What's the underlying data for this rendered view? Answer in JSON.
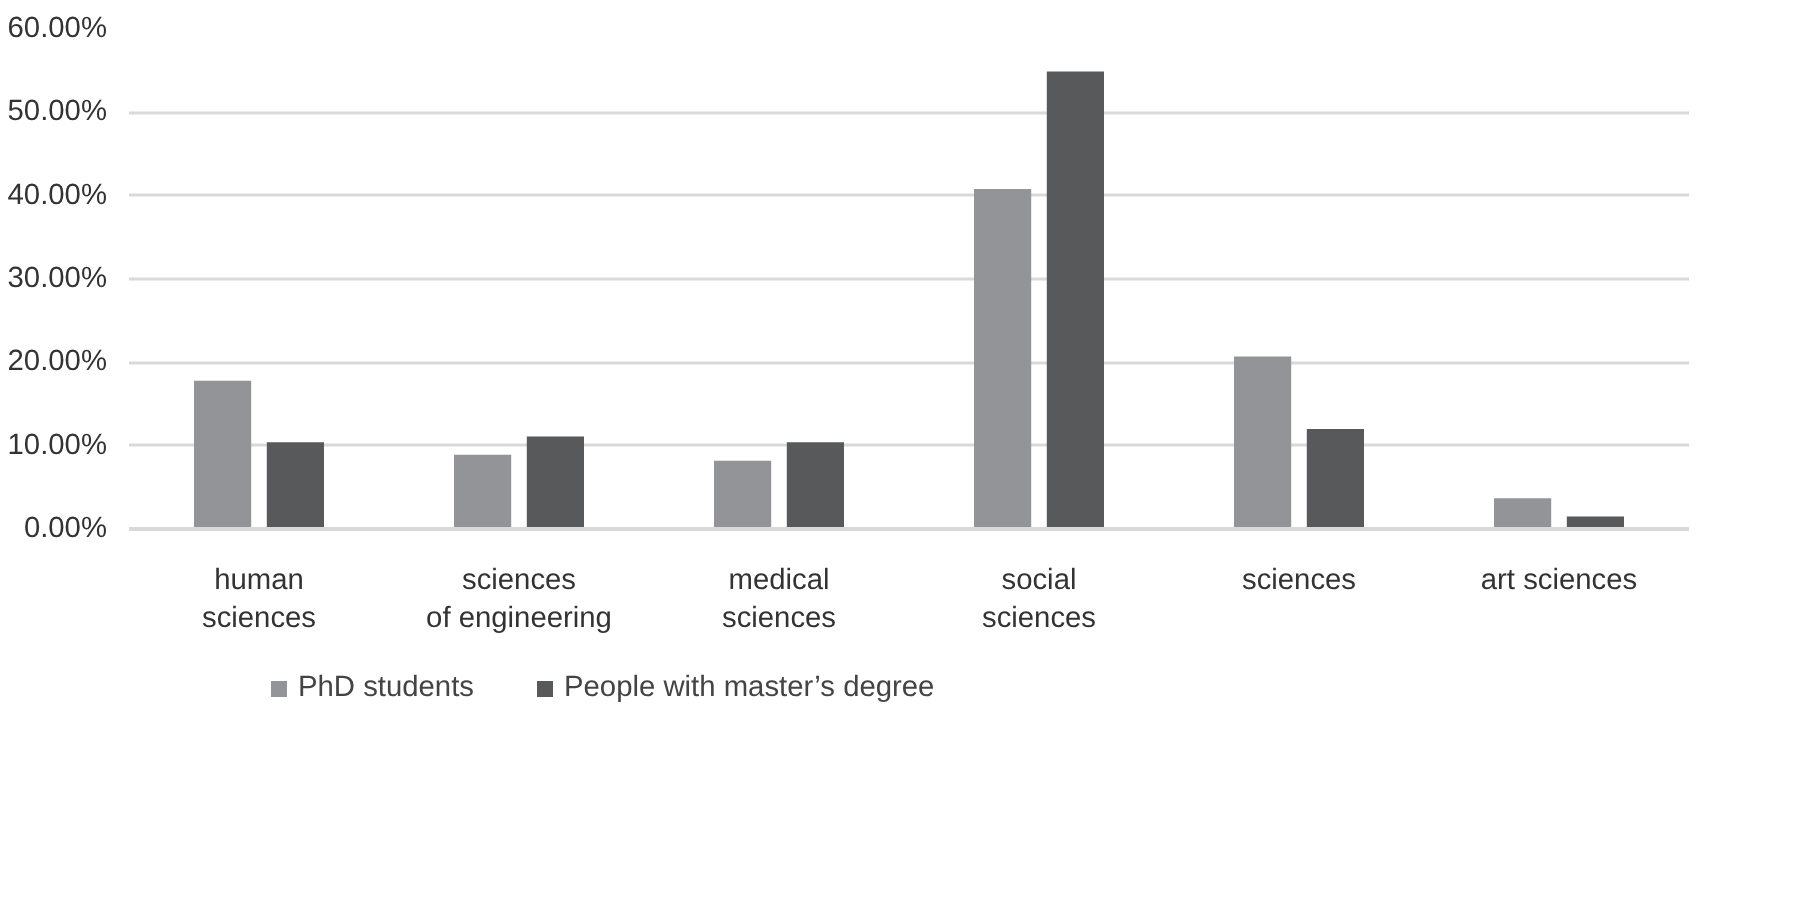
{
  "chart_data": {
    "type": "bar",
    "categories": [
      "human\nsciences",
      "sciences\nof engineering",
      "medical\nsciences",
      "social\nsciences",
      "sciences",
      "art sciences"
    ],
    "series": [
      {
        "name": "PhD students",
        "color": "#939497",
        "values": [
          17.8,
          8.9,
          8.2,
          40.8,
          20.7,
          3.7
        ]
      },
      {
        "name": "People with master’s degree",
        "color": "#58595b",
        "values": [
          10.4,
          11.1,
          10.4,
          54.9,
          12.0,
          1.5
        ]
      }
    ],
    "ylim": [
      0,
      60
    ],
    "yticks": [
      {
        "value": 0,
        "label": "0.00%"
      },
      {
        "value": 10,
        "label": "10.00%"
      },
      {
        "value": 20,
        "label": "20.00%"
      },
      {
        "value": 30,
        "label": "30.00%"
      },
      {
        "value": 40,
        "label": "40.00%"
      },
      {
        "value": 50,
        "label": "50.00%"
      },
      {
        "value": 60,
        "label": "60.00%"
      }
    ],
    "grid": "y",
    "legend": "bottom left"
  }
}
